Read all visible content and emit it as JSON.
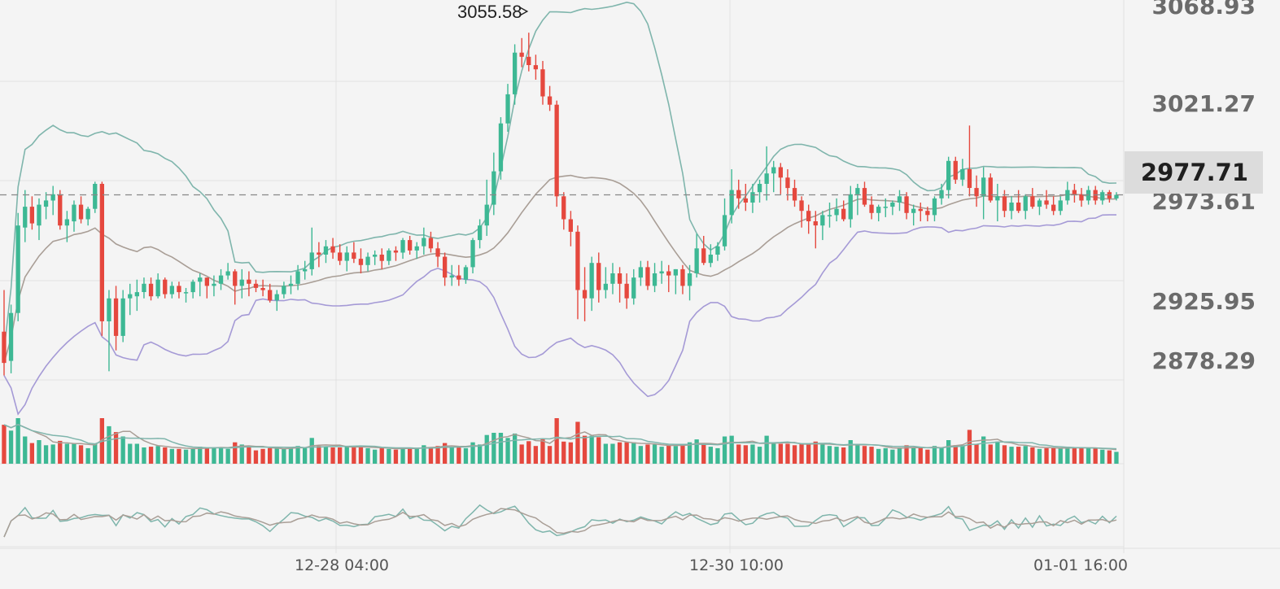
{
  "chart_data": {
    "type": "candlestick",
    "title": "",
    "price_axis": {
      "labels": [
        "3068.93",
        "3021.27",
        "2973.61",
        "2925.95",
        "2878.29"
      ],
      "values": [
        3068.93,
        3021.27,
        2973.61,
        2925.95,
        2878.29
      ],
      "visible_range": [
        2868,
        3073
      ]
    },
    "current_price": {
      "label": "2977.71",
      "value": 2977.71
    },
    "max_annotation": {
      "label": "3055.58",
      "value": 3055.58
    },
    "time_axis": {
      "labels": [
        "12-28 04:00",
        "12-30 10:00",
        "01-01 16:00"
      ]
    },
    "colors": {
      "up": "#3db894",
      "down": "#e5483e",
      "bb_upper": "#7fb5ac",
      "bb_middle": "#a99e96",
      "bb_lower": "#a59ad6",
      "vol_ma1": "#a99e96",
      "vol_ma2": "#7fb5ac",
      "osc_line1": "#7fb5ac",
      "osc_line2": "#a99e96",
      "grid": "#e2e2e2",
      "current_line": "#888888",
      "background": "#f4f4f4"
    },
    "candles": [
      {
        "o": 2912,
        "h": 2932,
        "l": 2891,
        "c": 2897
      },
      {
        "o": 2898,
        "h": 2925,
        "l": 2892,
        "c": 2921
      },
      {
        "o": 2921,
        "h": 2969,
        "l": 2917,
        "c": 2963
      },
      {
        "o": 2962,
        "h": 2980,
        "l": 2955,
        "c": 2972
      },
      {
        "o": 2972,
        "h": 2977,
        "l": 2961,
        "c": 2964
      },
      {
        "o": 2963,
        "h": 2976,
        "l": 2956,
        "c": 2973
      },
      {
        "o": 2972,
        "h": 2979,
        "l": 2966,
        "c": 2975
      },
      {
        "o": 2975,
        "h": 2982,
        "l": 2968,
        "c": 2978
      },
      {
        "o": 2978,
        "h": 2980,
        "l": 2961,
        "c": 2963
      },
      {
        "o": 2963,
        "h": 2970,
        "l": 2955,
        "c": 2966
      },
      {
        "o": 2965,
        "h": 2975,
        "l": 2960,
        "c": 2973
      },
      {
        "o": 2973,
        "h": 2977,
        "l": 2964,
        "c": 2966
      },
      {
        "o": 2966,
        "h": 2972,
        "l": 2963,
        "c": 2971
      },
      {
        "o": 2971,
        "h": 2984,
        "l": 2969,
        "c": 2983
      },
      {
        "o": 2983,
        "h": 2984,
        "l": 2910,
        "c": 2917
      },
      {
        "o": 2917,
        "h": 2932,
        "l": 2893,
        "c": 2928
      },
      {
        "o": 2928,
        "h": 2934,
        "l": 2903,
        "c": 2910
      },
      {
        "o": 2910,
        "h": 2932,
        "l": 2907,
        "c": 2928
      },
      {
        "o": 2928,
        "h": 2935,
        "l": 2920,
        "c": 2930
      },
      {
        "o": 2929,
        "h": 2937,
        "l": 2922,
        "c": 2931
      },
      {
        "o": 2931,
        "h": 2938,
        "l": 2928,
        "c": 2935
      },
      {
        "o": 2935,
        "h": 2938,
        "l": 2927,
        "c": 2929
      },
      {
        "o": 2929,
        "h": 2940,
        "l": 2928,
        "c": 2937
      },
      {
        "o": 2937,
        "h": 2938,
        "l": 2928,
        "c": 2930
      },
      {
        "o": 2930,
        "h": 2936,
        "l": 2928,
        "c": 2934
      },
      {
        "o": 2934,
        "h": 2936,
        "l": 2928,
        "c": 2931
      },
      {
        "o": 2931,
        "h": 2933,
        "l": 2926,
        "c": 2931
      },
      {
        "o": 2931,
        "h": 2937,
        "l": 2928,
        "c": 2936
      },
      {
        "o": 2936,
        "h": 2940,
        "l": 2929,
        "c": 2938
      },
      {
        "o": 2938,
        "h": 2938,
        "l": 2928,
        "c": 2934
      },
      {
        "o": 2934,
        "h": 2939,
        "l": 2929,
        "c": 2935
      },
      {
        "o": 2935,
        "h": 2942,
        "l": 2932,
        "c": 2939
      },
      {
        "o": 2939,
        "h": 2945,
        "l": 2937,
        "c": 2941
      },
      {
        "o": 2941,
        "h": 2942,
        "l": 2925,
        "c": 2934
      },
      {
        "o": 2934,
        "h": 2942,
        "l": 2928,
        "c": 2937
      },
      {
        "o": 2937,
        "h": 2941,
        "l": 2929,
        "c": 2935
      },
      {
        "o": 2935,
        "h": 2937,
        "l": 2931,
        "c": 2933
      },
      {
        "o": 2933,
        "h": 2937,
        "l": 2929,
        "c": 2932
      },
      {
        "o": 2932,
        "h": 2935,
        "l": 2926,
        "c": 2927
      },
      {
        "o": 2927,
        "h": 2932,
        "l": 2922,
        "c": 2930
      },
      {
        "o": 2930,
        "h": 2936,
        "l": 2928,
        "c": 2934
      },
      {
        "o": 2934,
        "h": 2939,
        "l": 2930,
        "c": 2935
      },
      {
        "o": 2935,
        "h": 2944,
        "l": 2932,
        "c": 2941
      },
      {
        "o": 2941,
        "h": 2946,
        "l": 2937,
        "c": 2942
      },
      {
        "o": 2942,
        "h": 2962,
        "l": 2939,
        "c": 2950
      },
      {
        "o": 2950,
        "h": 2955,
        "l": 2943,
        "c": 2949
      },
      {
        "o": 2949,
        "h": 2956,
        "l": 2945,
        "c": 2953
      },
      {
        "o": 2953,
        "h": 2957,
        "l": 2947,
        "c": 2950
      },
      {
        "o": 2950,
        "h": 2954,
        "l": 2944,
        "c": 2946
      },
      {
        "o": 2946,
        "h": 2953,
        "l": 2941,
        "c": 2950
      },
      {
        "o": 2950,
        "h": 2955,
        "l": 2945,
        "c": 2947
      },
      {
        "o": 2947,
        "h": 2952,
        "l": 2940,
        "c": 2944
      },
      {
        "o": 2944,
        "h": 2950,
        "l": 2941,
        "c": 2948
      },
      {
        "o": 2948,
        "h": 2951,
        "l": 2944,
        "c": 2949
      },
      {
        "o": 2949,
        "h": 2952,
        "l": 2942,
        "c": 2946
      },
      {
        "o": 2946,
        "h": 2952,
        "l": 2944,
        "c": 2951
      },
      {
        "o": 2951,
        "h": 2953,
        "l": 2946,
        "c": 2950
      },
      {
        "o": 2950,
        "h": 2957,
        "l": 2947,
        "c": 2956
      },
      {
        "o": 2956,
        "h": 2958,
        "l": 2949,
        "c": 2951
      },
      {
        "o": 2951,
        "h": 2955,
        "l": 2947,
        "c": 2953
      },
      {
        "o": 2953,
        "h": 2962,
        "l": 2949,
        "c": 2957
      },
      {
        "o": 2957,
        "h": 2960,
        "l": 2950,
        "c": 2952
      },
      {
        "o": 2952,
        "h": 2955,
        "l": 2943,
        "c": 2948
      },
      {
        "o": 2948,
        "h": 2950,
        "l": 2934,
        "c": 2938
      },
      {
        "o": 2938,
        "h": 2944,
        "l": 2934,
        "c": 2939
      },
      {
        "o": 2939,
        "h": 2944,
        "l": 2934,
        "c": 2937
      },
      {
        "o": 2937,
        "h": 2944,
        "l": 2935,
        "c": 2943
      },
      {
        "o": 2943,
        "h": 2957,
        "l": 2940,
        "c": 2956
      },
      {
        "o": 2956,
        "h": 2966,
        "l": 2952,
        "c": 2963
      },
      {
        "o": 2963,
        "h": 2985,
        "l": 2958,
        "c": 2973
      },
      {
        "o": 2973,
        "h": 2998,
        "l": 2968,
        "c": 2989
      },
      {
        "o": 2989,
        "h": 3015,
        "l": 2985,
        "c": 3012
      },
      {
        "o": 3012,
        "h": 3031,
        "l": 3008,
        "c": 3026
      },
      {
        "o": 3026,
        "h": 3050,
        "l": 3021,
        "c": 3046
      },
      {
        "o": 3046,
        "h": 3053,
        "l": 3039,
        "c": 3044
      },
      {
        "o": 3044,
        "h": 3055.58,
        "l": 3037,
        "c": 3040
      },
      {
        "o": 3040,
        "h": 3045,
        "l": 3033,
        "c": 3038
      },
      {
        "o": 3038,
        "h": 3042,
        "l": 3021,
        "c": 3025
      },
      {
        "o": 3025,
        "h": 3030,
        "l": 3018,
        "c": 3021
      },
      {
        "o": 3021,
        "h": 3023,
        "l": 2972,
        "c": 2977
      },
      {
        "o": 2977,
        "h": 2979,
        "l": 2961,
        "c": 2966
      },
      {
        "o": 2966,
        "h": 2970,
        "l": 2953,
        "c": 2960
      },
      {
        "o": 2960,
        "h": 2963,
        "l": 2918,
        "c": 2932
      },
      {
        "o": 2932,
        "h": 2943,
        "l": 2917,
        "c": 2928
      },
      {
        "o": 2928,
        "h": 2948,
        "l": 2922,
        "c": 2945
      },
      {
        "o": 2945,
        "h": 2950,
        "l": 2926,
        "c": 2932
      },
      {
        "o": 2932,
        "h": 2943,
        "l": 2928,
        "c": 2935
      },
      {
        "o": 2935,
        "h": 2945,
        "l": 2930,
        "c": 2940
      },
      {
        "o": 2940,
        "h": 2943,
        "l": 2926,
        "c": 2935
      },
      {
        "o": 2935,
        "h": 2940,
        "l": 2923,
        "c": 2928
      },
      {
        "o": 2928,
        "h": 2942,
        "l": 2925,
        "c": 2938
      },
      {
        "o": 2938,
        "h": 2946,
        "l": 2934,
        "c": 2943
      },
      {
        "o": 2943,
        "h": 2946,
        "l": 2932,
        "c": 2934
      },
      {
        "o": 2934,
        "h": 2945,
        "l": 2931,
        "c": 2940
      },
      {
        "o": 2940,
        "h": 2946,
        "l": 2935,
        "c": 2941
      },
      {
        "o": 2941,
        "h": 2944,
        "l": 2931,
        "c": 2939
      },
      {
        "o": 2939,
        "h": 2942,
        "l": 2930,
        "c": 2942
      },
      {
        "o": 2942,
        "h": 2944,
        "l": 2930,
        "c": 2934
      },
      {
        "o": 2934,
        "h": 2944,
        "l": 2927,
        "c": 2940
      },
      {
        "o": 2940,
        "h": 2959,
        "l": 2938,
        "c": 2952
      },
      {
        "o": 2952,
        "h": 2958,
        "l": 2944,
        "c": 2945
      },
      {
        "o": 2945,
        "h": 2954,
        "l": 2943,
        "c": 2949
      },
      {
        "o": 2949,
        "h": 2955,
        "l": 2946,
        "c": 2953
      },
      {
        "o": 2953,
        "h": 2976,
        "l": 2951,
        "c": 2968
      },
      {
        "o": 2968,
        "h": 2990,
        "l": 2964,
        "c": 2980
      },
      {
        "o": 2980,
        "h": 2985,
        "l": 2971,
        "c": 2976
      },
      {
        "o": 2976,
        "h": 2983,
        "l": 2970,
        "c": 2974
      },
      {
        "o": 2974,
        "h": 2983,
        "l": 2969,
        "c": 2979
      },
      {
        "o": 2979,
        "h": 2985,
        "l": 2974,
        "c": 2983
      },
      {
        "o": 2983,
        "h": 3001,
        "l": 2975,
        "c": 2988
      },
      {
        "o": 2988,
        "h": 2994,
        "l": 2979,
        "c": 2991
      },
      {
        "o": 2991,
        "h": 2993,
        "l": 2978,
        "c": 2986
      },
      {
        "o": 2986,
        "h": 2990,
        "l": 2975,
        "c": 2981
      },
      {
        "o": 2981,
        "h": 2985,
        "l": 2972,
        "c": 2975
      },
      {
        "o": 2975,
        "h": 2977,
        "l": 2962,
        "c": 2970
      },
      {
        "o": 2970,
        "h": 2973,
        "l": 2959,
        "c": 2965
      },
      {
        "o": 2965,
        "h": 2970,
        "l": 2952,
        "c": 2963
      },
      {
        "o": 2963,
        "h": 2970,
        "l": 2956,
        "c": 2968
      },
      {
        "o": 2968,
        "h": 2974,
        "l": 2962,
        "c": 2968
      },
      {
        "o": 2968,
        "h": 2976,
        "l": 2965,
        "c": 2971
      },
      {
        "o": 2971,
        "h": 2975,
        "l": 2965,
        "c": 2966
      },
      {
        "o": 2966,
        "h": 2982,
        "l": 2962,
        "c": 2978
      },
      {
        "o": 2978,
        "h": 2983,
        "l": 2968,
        "c": 2981
      },
      {
        "o": 2981,
        "h": 2984,
        "l": 2972,
        "c": 2973
      },
      {
        "o": 2973,
        "h": 2977,
        "l": 2966,
        "c": 2969
      },
      {
        "o": 2969,
        "h": 2973,
        "l": 2965,
        "c": 2972
      },
      {
        "o": 2972,
        "h": 2976,
        "l": 2967,
        "c": 2972
      },
      {
        "o": 2972,
        "h": 2975,
        "l": 2968,
        "c": 2974
      },
      {
        "o": 2974,
        "h": 2980,
        "l": 2970,
        "c": 2977
      },
      {
        "o": 2977,
        "h": 2979,
        "l": 2966,
        "c": 2969
      },
      {
        "o": 2969,
        "h": 2973,
        "l": 2963,
        "c": 2971
      },
      {
        "o": 2971,
        "h": 2974,
        "l": 2965,
        "c": 2970
      },
      {
        "o": 2970,
        "h": 2972,
        "l": 2965,
        "c": 2968
      },
      {
        "o": 2968,
        "h": 2977,
        "l": 2965,
        "c": 2976
      },
      {
        "o": 2976,
        "h": 2983,
        "l": 2973,
        "c": 2980
      },
      {
        "o": 2980,
        "h": 2996,
        "l": 2976,
        "c": 2994
      },
      {
        "o": 2994,
        "h": 2996,
        "l": 2983,
        "c": 2985
      },
      {
        "o": 2985,
        "h": 2995,
        "l": 2982,
        "c": 2990
      },
      {
        "o": 2990,
        "h": 3011,
        "l": 2977,
        "c": 2981
      },
      {
        "o": 2981,
        "h": 2987,
        "l": 2972,
        "c": 2977
      },
      {
        "o": 2977,
        "h": 2991,
        "l": 2966,
        "c": 2986
      },
      {
        "o": 2986,
        "h": 2988,
        "l": 2974,
        "c": 2975
      },
      {
        "o": 2975,
        "h": 2983,
        "l": 2965,
        "c": 2977
      },
      {
        "o": 2977,
        "h": 2980,
        "l": 2967,
        "c": 2970
      },
      {
        "o": 2970,
        "h": 2977,
        "l": 2966,
        "c": 2974
      },
      {
        "o": 2974,
        "h": 2980,
        "l": 2969,
        "c": 2970
      },
      {
        "o": 2970,
        "h": 2978,
        "l": 2966,
        "c": 2977
      },
      {
        "o": 2977,
        "h": 2981,
        "l": 2971,
        "c": 2972
      },
      {
        "o": 2972,
        "h": 2976,
        "l": 2968,
        "c": 2975
      },
      {
        "o": 2975,
        "h": 2980,
        "l": 2971,
        "c": 2973
      },
      {
        "o": 2973,
        "h": 2977,
        "l": 2968,
        "c": 2970
      },
      {
        "o": 2970,
        "h": 2977,
        "l": 2968,
        "c": 2975
      },
      {
        "o": 2975,
        "h": 2984,
        "l": 2973,
        "c": 2980
      },
      {
        "o": 2980,
        "h": 2983,
        "l": 2974,
        "c": 2978
      },
      {
        "o": 2978,
        "h": 2981,
        "l": 2972,
        "c": 2975
      },
      {
        "o": 2975,
        "h": 2982,
        "l": 2973,
        "c": 2980
      },
      {
        "o": 2980,
        "h": 2982,
        "l": 2973,
        "c": 2975
      },
      {
        "o": 2975,
        "h": 2980,
        "l": 2973,
        "c": 2979
      },
      {
        "o": 2979,
        "h": 2980,
        "l": 2974,
        "c": 2976
      },
      {
        "o": 2976,
        "h": 2979,
        "l": 2975,
        "c": 2977.71
      }
    ],
    "volume_ma": {
      "ma1_level": 0.18,
      "ma2_level": 0.22
    },
    "oscillator": {
      "series": [
        "line1",
        "line2"
      ],
      "range": [
        0,
        100
      ]
    }
  }
}
